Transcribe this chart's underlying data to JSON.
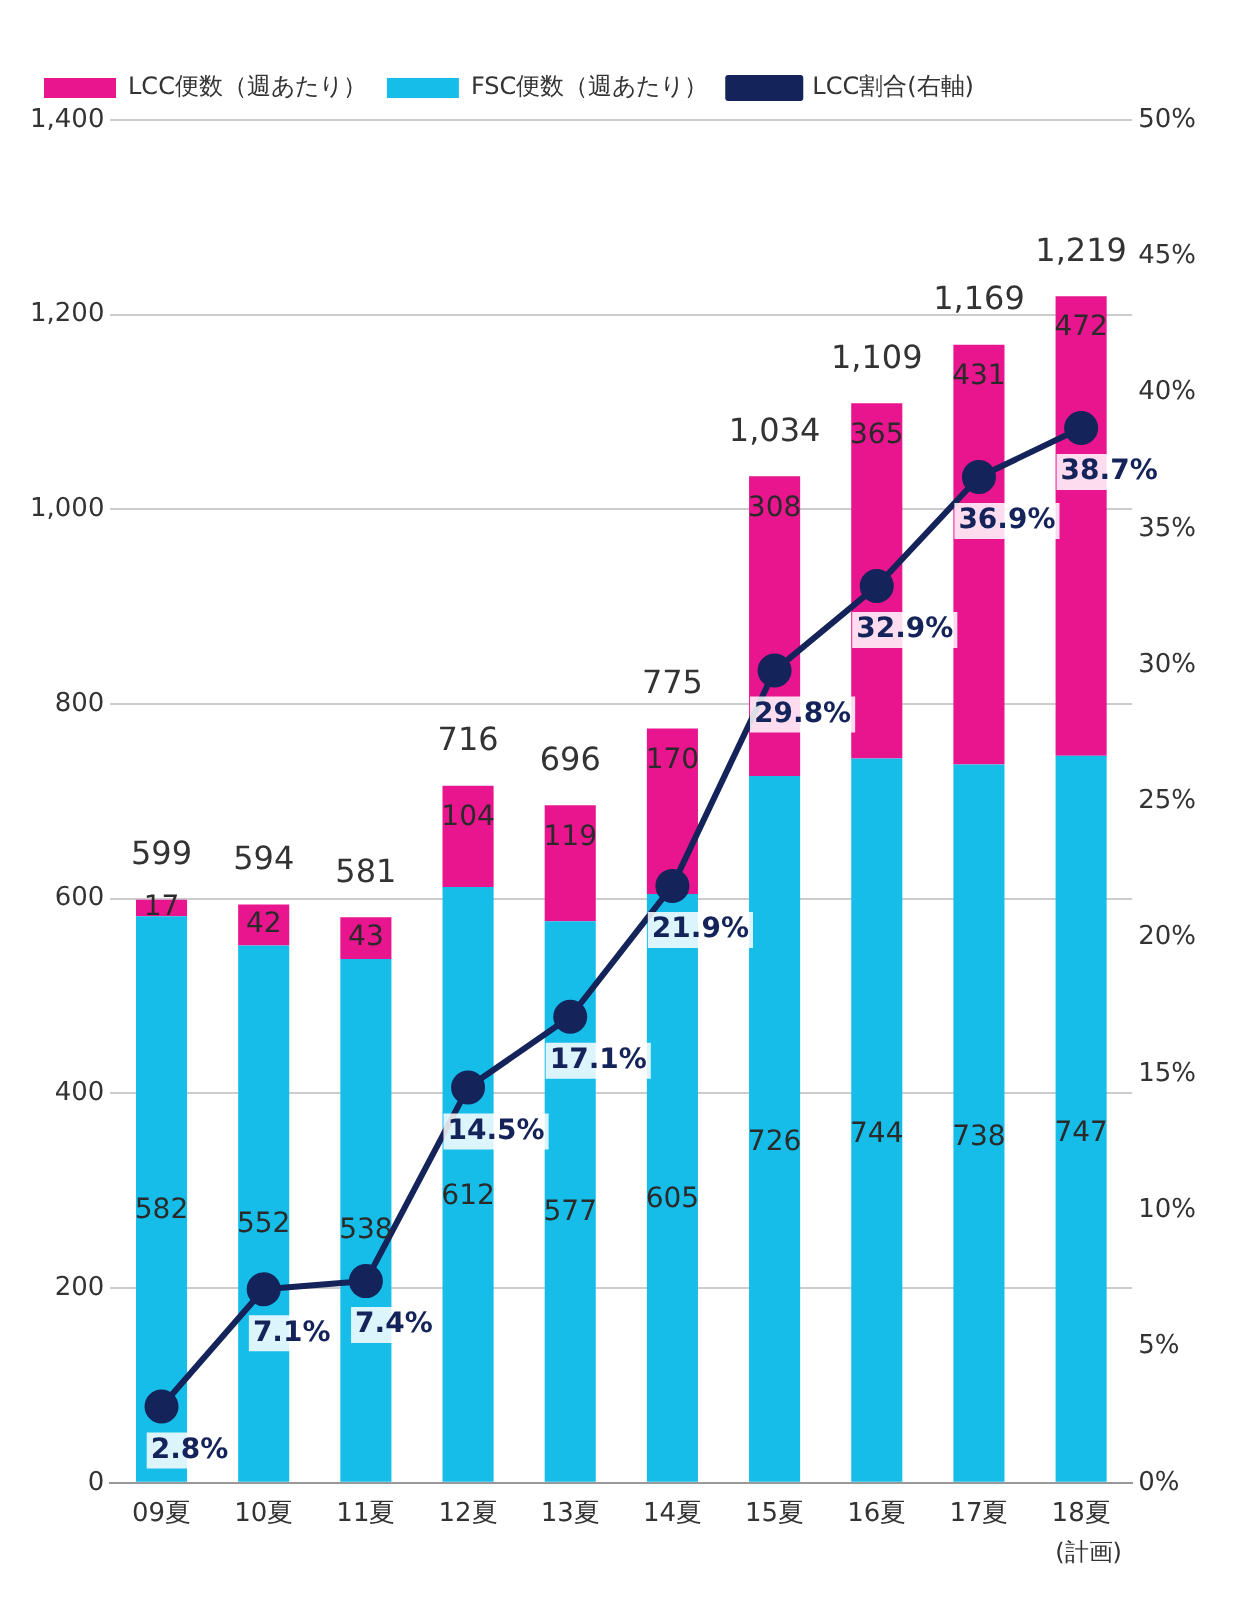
{
  "chart_data": {
    "type": "bar",
    "stacked": true,
    "categories": [
      "09夏",
      "10夏",
      "11夏",
      "12夏",
      "13夏",
      "14夏",
      "15夏",
      "16夏",
      "17夏",
      "18夏"
    ],
    "series": [
      {
        "name": "FSC便数（週あたり）",
        "color": "#16bde8",
        "values": [
          582,
          552,
          538,
          612,
          577,
          605,
          726,
          744,
          738,
          747
        ],
        "value_labels": [
          "582",
          "552",
          "538",
          "612",
          "577",
          "605",
          "726",
          "744",
          "738",
          "747"
        ]
      },
      {
        "name": "LCC便数（週あたり）",
        "color": "#e8158f",
        "values": [
          17,
          42,
          43,
          104,
          119,
          170,
          308,
          365,
          431,
          472
        ],
        "value_labels": [
          "17",
          "42",
          "43",
          "104",
          "119",
          "170",
          "308",
          "365",
          "431",
          "472"
        ]
      },
      {
        "name": "LCC割合(右軸)",
        "type": "line",
        "axis": "y2",
        "color": "#14235a",
        "values": [
          2.8,
          7.1,
          7.4,
          14.5,
          17.1,
          21.9,
          29.8,
          32.9,
          36.9,
          38.7
        ],
        "value_labels": [
          "2.8%",
          "7.1%",
          "7.4%",
          "14.5%",
          "17.1%",
          "21.9%",
          "29.8%",
          "32.9%",
          "36.9%",
          "38.7%"
        ]
      }
    ],
    "totals": [
      "599",
      "594",
      "581",
      "716",
      "696",
      "775",
      "1,034",
      "1,109",
      "1,169",
      "1,219"
    ],
    "ylim": [
      0,
      1400
    ],
    "yticks": [
      0,
      200,
      400,
      600,
      800,
      {
        "value": 1000,
        "label": "1,000"
      },
      {
        "value": 1200,
        "label": "1,200"
      },
      {
        "value": 1400,
        "label": "1,400"
      }
    ],
    "y2lim": [
      0,
      50
    ],
    "y2ticks": [
      {
        "value": 0,
        "label": "0%"
      },
      {
        "value": 5,
        "label": "5%"
      },
      {
        "value": 10,
        "label": "10%"
      },
      {
        "value": 15,
        "label": "15%"
      },
      {
        "value": 20,
        "label": "20%"
      },
      {
        "value": 25,
        "label": "25%"
      },
      {
        "value": 30,
        "label": "30%"
      },
      {
        "value": 35,
        "label": "35%"
      },
      {
        "value": 40,
        "label": "40%"
      },
      {
        "value": 45,
        "label": "45%"
      },
      {
        "value": 50,
        "label": "50%"
      }
    ],
    "grid": "y",
    "legend": "top left",
    "marker": "circle",
    "annotations": [
      "(計画)"
    ]
  }
}
